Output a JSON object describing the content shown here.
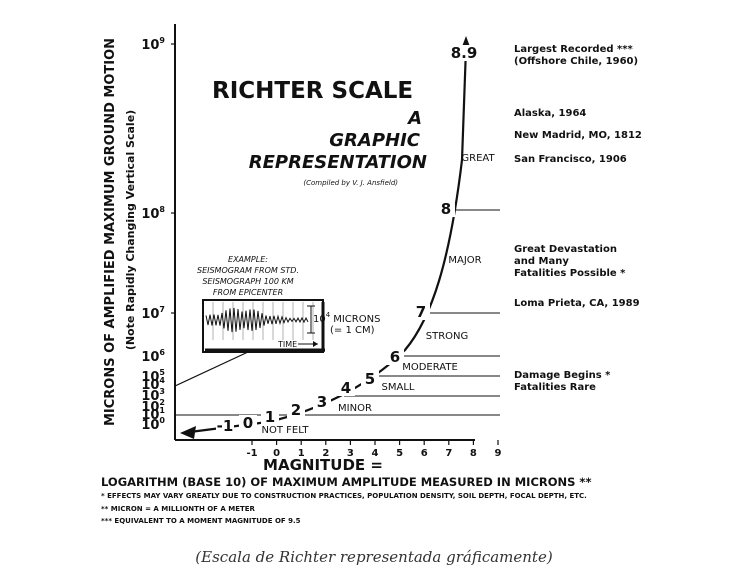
{
  "title": {
    "line1": "RICHTER SCALE",
    "line2": "A",
    "line3": "GRAPHIC",
    "line4": "REPRESENTATION",
    "credit": "(Compiled by V. J. Ansfield)"
  },
  "y_axis": {
    "label_main": "MICRONS OF AMPLIFIED MAXIMUM GROUND MOTION",
    "label_note": "(Note Rapidly Changing Vertical Scale)",
    "ticks": [
      {
        "base": "10",
        "exp": "9"
      },
      {
        "base": "10",
        "exp": "8"
      },
      {
        "base": "10",
        "exp": "7"
      },
      {
        "base": "10",
        "exp": "6"
      },
      {
        "base": "10",
        "exp": "5"
      },
      {
        "base": "10",
        "exp": "4"
      },
      {
        "base": "10",
        "exp": "3"
      },
      {
        "base": "10",
        "exp": "2"
      },
      {
        "base": "10",
        "exp": "1"
      },
      {
        "base": "10",
        "exp": "0"
      }
    ]
  },
  "x_axis": {
    "ticks": [
      "-1",
      "0",
      "1",
      "2",
      "3",
      "4",
      "5",
      "6",
      "7",
      "8",
      "9"
    ],
    "label": "MAGNITUDE =",
    "sublabel": "LOGARITHM (BASE 10) OF MAXIMUM AMPLITUDE MEASURED IN MICRONS **"
  },
  "curve_labels": [
    "-1",
    "0",
    "1",
    "2",
    "3",
    "4",
    "5",
    "6",
    "7",
    "8",
    "8.9"
  ],
  "bands": [
    "NOT FELT",
    "MINOR",
    "SMALL",
    "MODERATE",
    "STRONG",
    "MAJOR",
    "GREAT"
  ],
  "example": {
    "lines": [
      "EXAMPLE:",
      "SEISMOGRAM FROM STD.",
      "SEISMOGRAPH 100 KM",
      "FROM EPICENTER"
    ],
    "amp_base": "10",
    "amp_exp": "4",
    "amp_unit": "MICRONS",
    "amp_equiv": "(= 1 CM)",
    "time_label": "TIME"
  },
  "events": [
    {
      "text": [
        "Largest Recorded ***",
        "(Offshore Chile, 1960)"
      ]
    },
    {
      "text": [
        "Alaska, 1964"
      ]
    },
    {
      "text": [
        "New Madrid, MO, 1812"
      ]
    },
    {
      "text": [
        "San Francisco, 1906"
      ]
    },
    {
      "text": [
        "Great Devastation",
        "and Many",
        "Fatalities Possible *"
      ]
    },
    {
      "text": [
        "Loma Prieta, CA,  1989"
      ]
    },
    {
      "text": [
        "Damage Begins  *",
        "Fatalities Rare"
      ]
    }
  ],
  "footnotes": [
    "* EFFECTS MAY VARY GREATLY DUE TO CONSTRUCTION PRACTICES, POPULATION DENSITY, SOIL DEPTH, FOCAL DEPTH, ETC.",
    "** MICRON = A MILLIONTH OF A METER",
    "*** EQUIVALENT TO A MOMENT MAGNITUDE OF 9.5"
  ],
  "caption": "(Escala de Richter representada gráficamente)",
  "colors": {
    "ink": "#111111",
    "background": "#ffffff",
    "caption": "#333333"
  }
}
